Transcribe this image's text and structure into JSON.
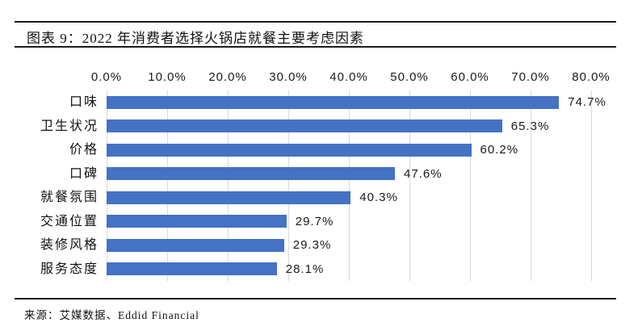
{
  "figure": {
    "title": "图表 9：2022 年消费者选择火锅店就餐主要考虑因素",
    "source": "来源：艾媒数据、Eddid Financial"
  },
  "chart_data": {
    "type": "bar",
    "orientation": "horizontal",
    "title": "2022 年消费者选择火锅店就餐主要考虑因素",
    "categories": [
      "口味",
      "卫生状况",
      "价格",
      "口碑",
      "就餐氛围",
      "交通位置",
      "装修风格",
      "服务态度"
    ],
    "values": [
      74.7,
      65.3,
      60.2,
      47.6,
      40.3,
      29.7,
      29.3,
      28.1
    ],
    "value_labels": [
      "74.7%",
      "65.3%",
      "60.2%",
      "47.6%",
      "40.3%",
      "29.7%",
      "29.3%",
      "28.1%"
    ],
    "x_ticks": [
      "0.0%",
      "10.0%",
      "20.0%",
      "30.0%",
      "40.0%",
      "50.0%",
      "60.0%",
      "70.0%",
      "80.0%"
    ],
    "xlim": [
      0,
      80
    ],
    "grid": true,
    "legend_position": "none",
    "bar_color": "#4472C4",
    "gridline_color": "#d9d9d9"
  }
}
